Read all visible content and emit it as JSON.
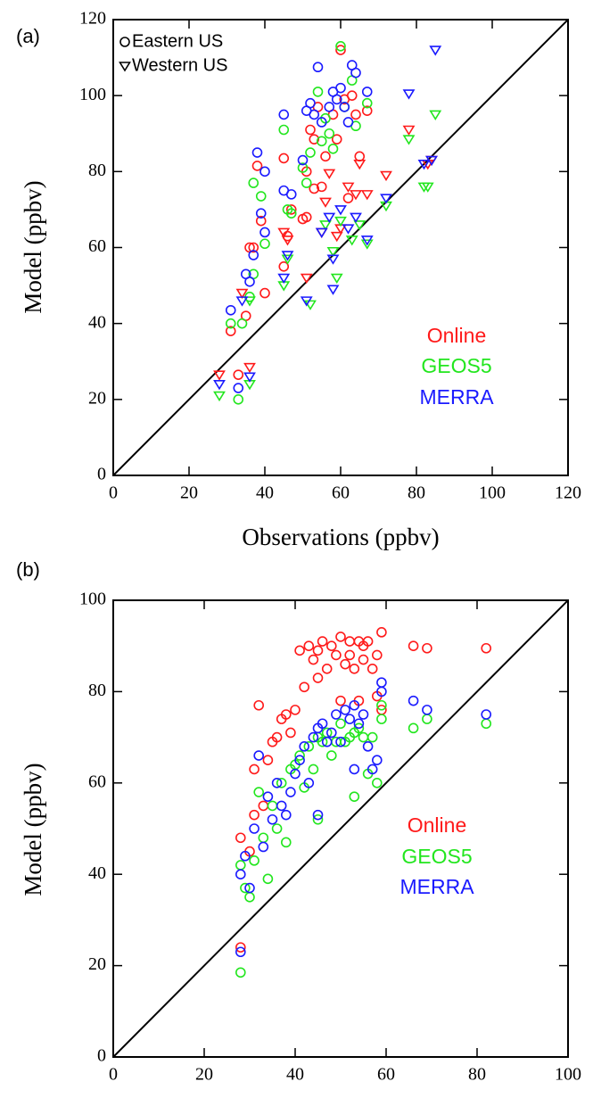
{
  "chart_data": [
    {
      "type": "scatter",
      "panel_label": "(a)",
      "x_label": "Observations (ppbv)",
      "y_label": "Model (ppbv)",
      "xlim": [
        0,
        120
      ],
      "ylim": [
        0,
        120
      ],
      "xticks": [
        0,
        20,
        40,
        60,
        80,
        100,
        120
      ],
      "yticks": [
        0,
        20,
        40,
        60,
        80,
        100,
        120
      ],
      "markers": [
        {
          "label": "Eastern US",
          "shape": "circle"
        },
        {
          "label": "Western US",
          "shape": "triangle"
        }
      ],
      "series": [
        {
          "name": "Online",
          "color": "#ff1a1a",
          "eastern": {
            "x": [
              31,
              33,
              35,
              36,
              37,
              38,
              39,
              40,
              45,
              45,
              46,
              47,
              50,
              51,
              51,
              52,
              53,
              53,
              54,
              55,
              56,
              58,
              59,
              60,
              61,
              62,
              64,
              65,
              67,
              63
            ],
            "values": [
              38,
              26.5,
              42,
              60,
              60,
              81.5,
              67,
              48,
              83.5,
              55,
              63,
              70,
              67.5,
              68,
              80,
              91,
              88.5,
              75.5,
              97,
              76,
              84,
              95,
              88.5,
              112,
              99,
              73,
              95,
              84,
              96,
              100
            ]
          },
          "western": {
            "x": [
              28,
              34,
              36,
              45,
              46,
              51,
              55,
              56,
              57,
              59,
              60,
              62,
              64,
              65,
              67,
              72,
              78,
              83,
              84
            ],
            "values": [
              26.5,
              48,
              28.5,
              64,
              62,
              52,
              64,
              72,
              79.5,
              63,
              65,
              76,
              74,
              82,
              74,
              79,
              91,
              82,
              83
            ]
          }
        },
        {
          "name": "GEOS5",
          "color": "#22e61e",
          "eastern": {
            "x": [
              31,
              33,
              34,
              36,
              37,
              37,
              39,
              40,
              45,
              46,
              47,
              50,
              51,
              52,
              54,
              55,
              56,
              57,
              58,
              60,
              61,
              63,
              64,
              67
            ],
            "values": [
              40,
              20,
              40,
              47,
              53,
              77,
              73.5,
              61,
              91,
              70,
              69,
              81,
              77,
              85,
              101,
              88,
              94,
              90,
              86,
              113,
              97,
              104,
              92,
              98
            ]
          },
          "western": {
            "x": [
              28,
              36,
              36,
              45,
              46,
              52,
              56,
              58,
              59,
              60,
              63,
              65,
              67,
              72,
              78,
              82,
              83,
              85
            ],
            "values": [
              21,
              24,
              46,
              50,
              57,
              45,
              66,
              59,
              52,
              67,
              62,
              66,
              61,
              71,
              88.5,
              76,
              76,
              95
            ]
          }
        },
        {
          "name": "MERRA",
          "color": "#1a1aff",
          "eastern": {
            "x": [
              31,
              33,
              35,
              36,
              37,
              38,
              39,
              40,
              40,
              45,
              45,
              47,
              50,
              51,
              52,
              53,
              54,
              55,
              57,
              58,
              59,
              60,
              61,
              63,
              64,
              67,
              62
            ],
            "values": [
              43.5,
              23,
              53,
              51,
              58,
              85,
              69,
              80,
              64,
              95,
              75,
              74,
              83,
              96,
              98,
              95,
              107.5,
              93,
              97,
              101,
              99,
              102,
              97,
              108,
              106,
              101,
              93
            ]
          },
          "western": {
            "x": [
              28,
              34,
              36,
              45,
              46,
              51,
              55,
              57,
              58,
              58,
              60,
              62,
              64,
              67,
              72,
              78,
              82,
              84,
              85
            ],
            "values": [
              24,
              46,
              26,
              52,
              58,
              46,
              64,
              68,
              49,
              57,
              70,
              65,
              68,
              62,
              73,
              100.5,
              82,
              83,
              112
            ]
          }
        }
      ]
    },
    {
      "type": "scatter",
      "panel_label": "(b)",
      "y_label": "Model (ppbv)",
      "xlim": [
        0,
        100
      ],
      "ylim": [
        0,
        100
      ],
      "xticks": [
        0,
        20,
        40,
        60,
        80,
        100
      ],
      "yticks": [
        0,
        20,
        40,
        60,
        80,
        100
      ],
      "series": [
        {
          "name": "Online",
          "color": "#ff1a1a",
          "x": [
            28,
            28,
            30,
            31,
            31,
            32,
            33,
            34,
            35,
            36,
            37,
            38,
            39,
            40,
            41,
            42,
            43,
            44,
            45,
            45,
            46,
            47,
            48,
            49,
            50,
            50,
            51,
            52,
            52,
            53,
            54,
            54,
            55,
            55,
            56,
            57,
            58,
            58,
            59,
            59,
            66,
            69,
            82
          ],
          "values": [
            48,
            24,
            45,
            53,
            63,
            77,
            55,
            65,
            69,
            70,
            74,
            75,
            71,
            76,
            89,
            81,
            90,
            87,
            83,
            89,
            91,
            85,
            90,
            88,
            92,
            78,
            86,
            91,
            88,
            85,
            91,
            78,
            87,
            90,
            91,
            85,
            79,
            88,
            93,
            76,
            90,
            89.5,
            89.5
          ]
        },
        {
          "name": "GEOS5",
          "color": "#22e61e",
          "x": [
            28,
            28,
            29,
            30,
            31,
            32,
            33,
            34,
            35,
            36,
            37,
            38,
            39,
            40,
            41,
            42,
            43,
            44,
            45,
            45,
            46,
            47,
            48,
            49,
            50,
            51,
            52,
            53,
            53,
            54,
            55,
            56,
            57,
            58,
            59,
            59,
            66,
            69,
            82
          ],
          "values": [
            18.5,
            42,
            37,
            35,
            43,
            58,
            48,
            39,
            55,
            50,
            60,
            47,
            63,
            64,
            66,
            59,
            68,
            63,
            52,
            70,
            69,
            71,
            66,
            69,
            73,
            69,
            70,
            57,
            71,
            72,
            70,
            62,
            70,
            60,
            74,
            77,
            72,
            74,
            73
          ]
        },
        {
          "name": "MERRA",
          "color": "#1a1aff",
          "x": [
            28,
            28,
            29,
            30,
            31,
            32,
            33,
            34,
            35,
            36,
            37,
            38,
            39,
            40,
            41,
            42,
            43,
            44,
            45,
            45,
            46,
            47,
            48,
            49,
            50,
            51,
            52,
            53,
            53,
            54,
            55,
            56,
            57,
            58,
            59,
            59,
            66,
            69,
            82
          ],
          "values": [
            23,
            40,
            44,
            37,
            50,
            66,
            46,
            57,
            52,
            60,
            55,
            53,
            58,
            62,
            65,
            68,
            60,
            70,
            53,
            72,
            73,
            69,
            71,
            75,
            69,
            76,
            74,
            63,
            77,
            73,
            75,
            68,
            63,
            65,
            82,
            80,
            78,
            76,
            75
          ]
        }
      ]
    }
  ]
}
